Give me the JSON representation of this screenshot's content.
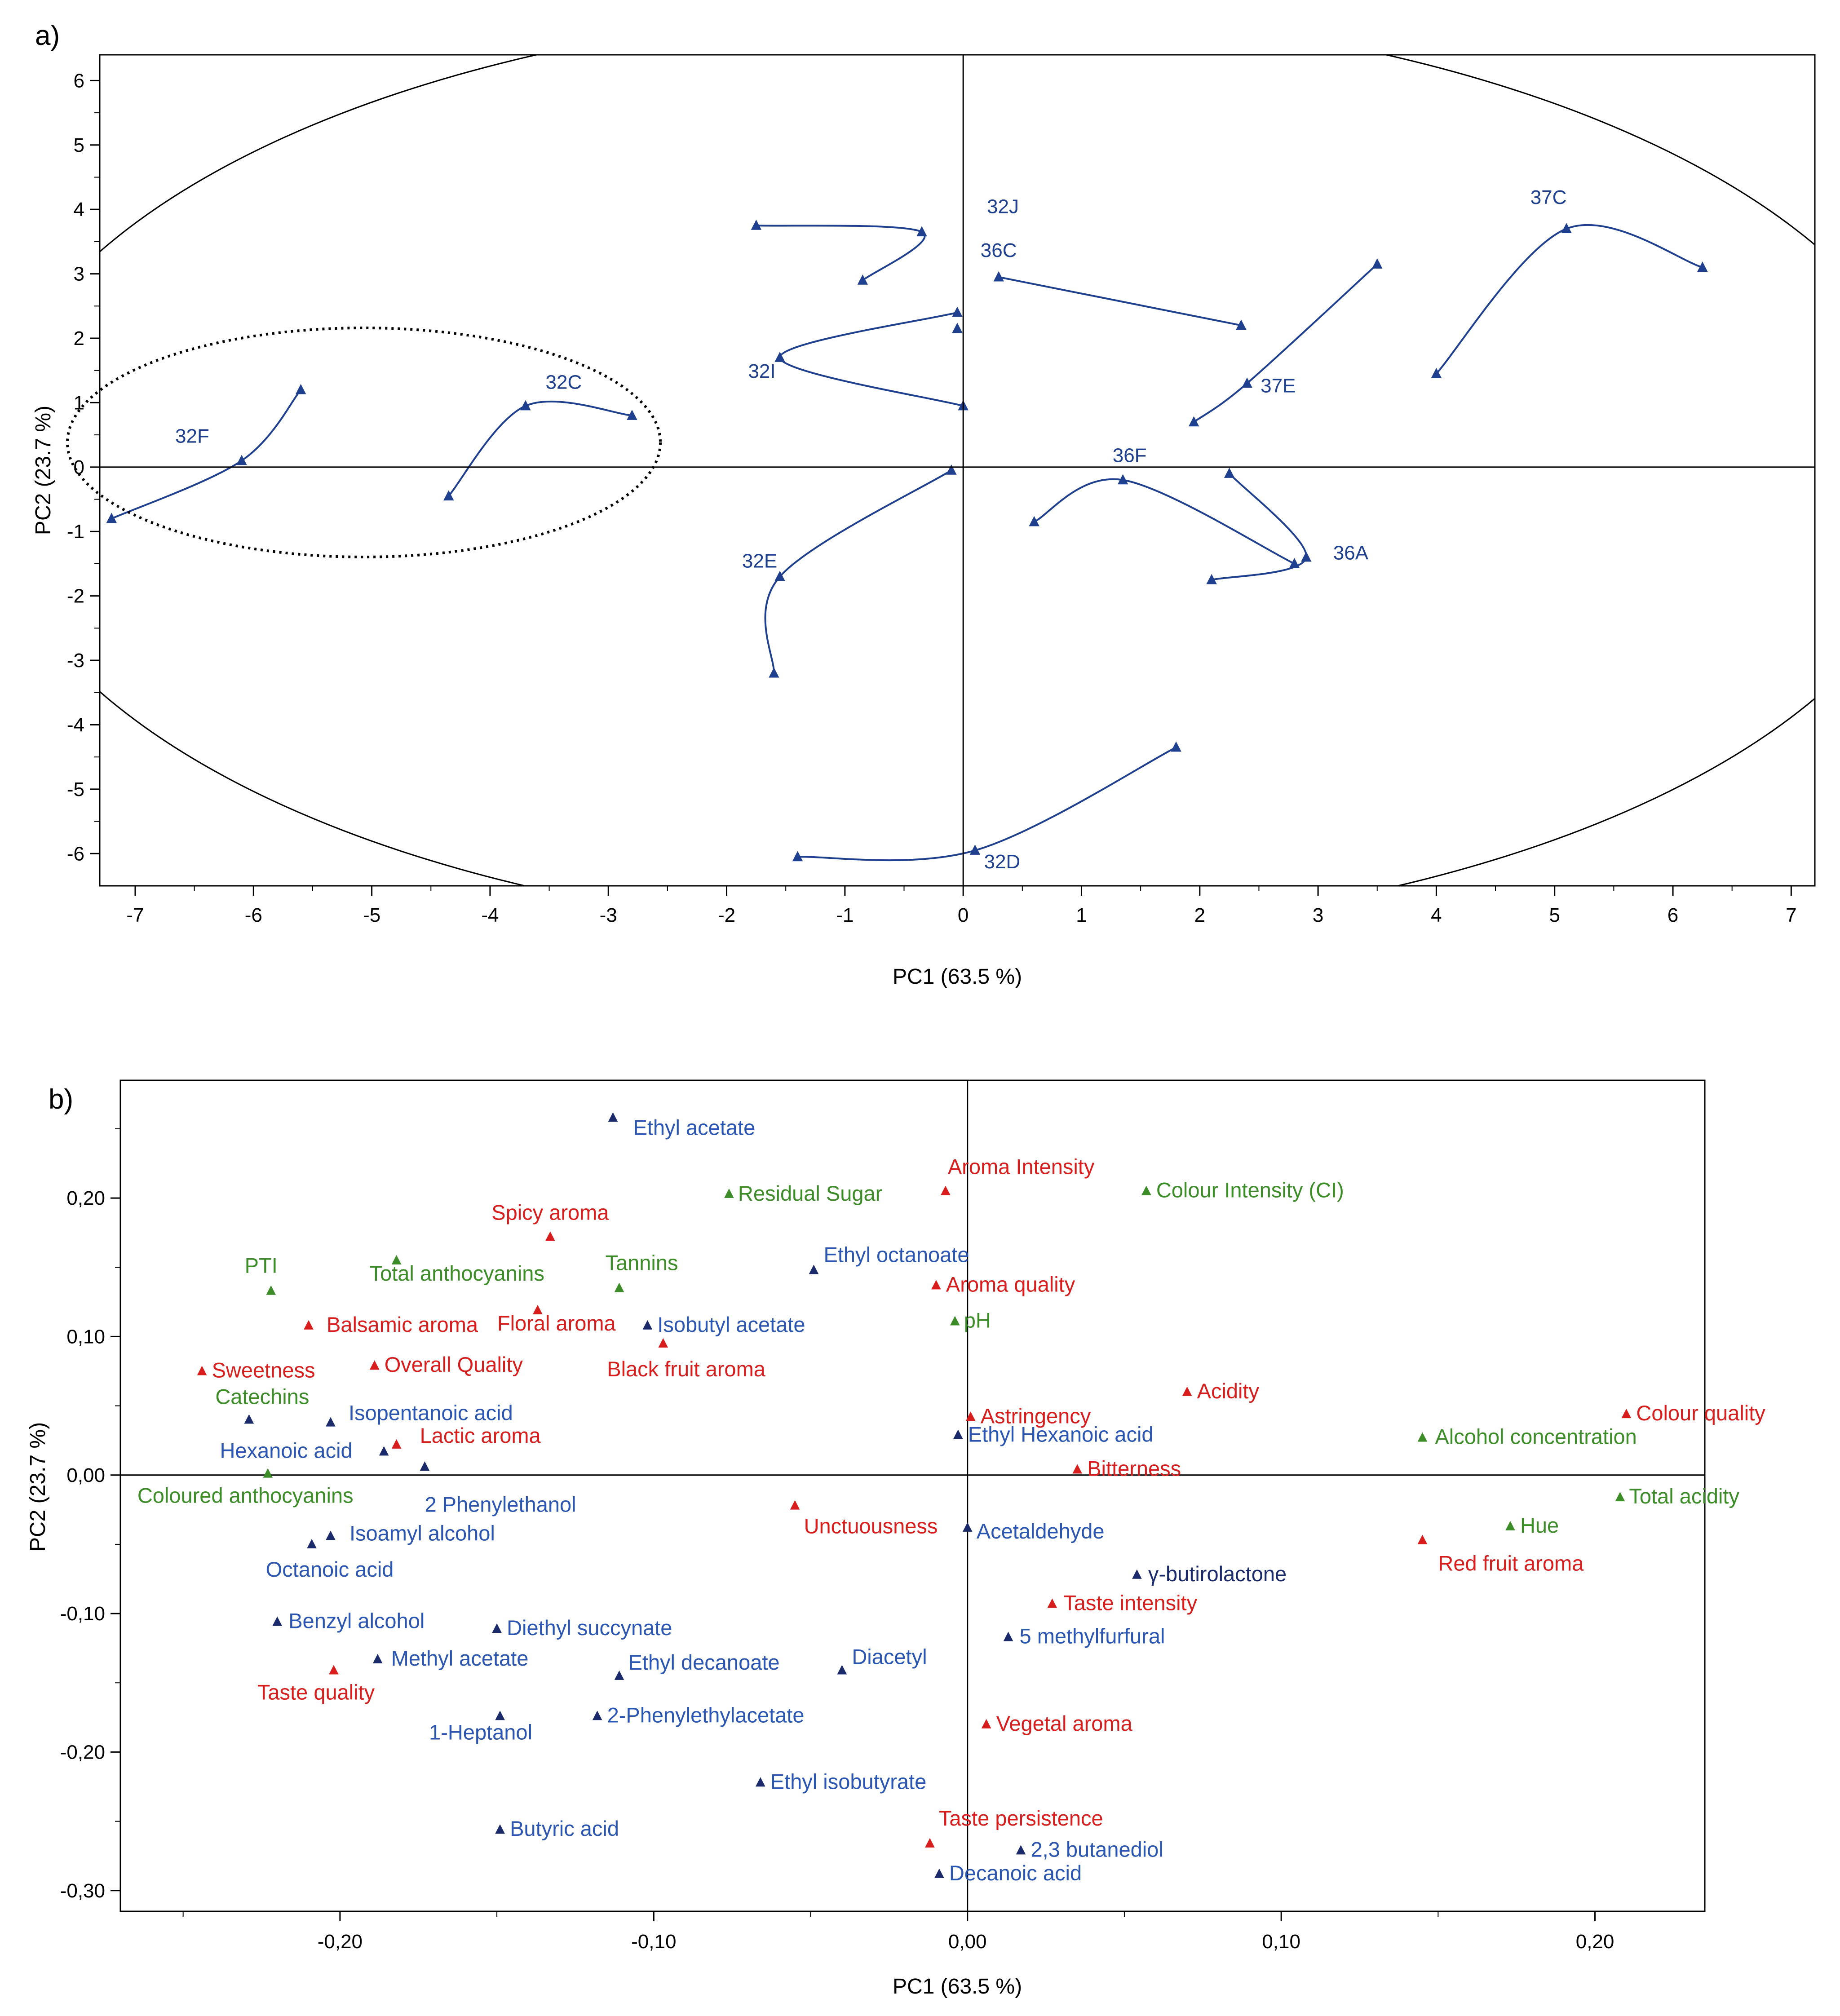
{
  "chart_data": [
    {
      "panel": "a)",
      "type": "scatter",
      "xlabel": "PC1 (63.5 %)",
      "ylabel": "PC2 (23.7 %)",
      "xlim": [
        -7.3,
        7.2
      ],
      "ylim": [
        -6.5,
        6.4
      ],
      "xticks": [
        -7,
        -6,
        -5,
        -4,
        -3,
        -2,
        -1,
        0,
        1,
        2,
        3,
        4,
        5,
        6,
        7
      ],
      "yticks": [
        6,
        5,
        4,
        3,
        2,
        1,
        0,
        -1,
        -2,
        -3,
        -4,
        -5,
        -6
      ],
      "tick_labels_x": [
        "-7",
        "-6",
        "-5",
        "-4",
        "-3",
        "-2",
        "-1",
        "0",
        "1",
        "2",
        "3",
        "4",
        "5",
        "6",
        "7"
      ],
      "tick_labels_y": [
        "6",
        "5",
        "4",
        "3",
        "2",
        "1",
        "0",
        "-1",
        "-2",
        "-3",
        "-4",
        "-5",
        "-6"
      ],
      "line_color": "#1f3f8f",
      "series": [
        {
          "name": "32J",
          "points": [
            [
              -1.75,
              3.75
            ],
            [
              -0.35,
              3.65
            ],
            [
              -0.85,
              2.9
            ]
          ]
        },
        {
          "name": "36C",
          "points": [
            [
              0.3,
              2.95
            ],
            [
              2.35,
              2.2
            ]
          ]
        },
        {
          "name": "32I",
          "points": [
            [
              -0.05,
              2.4
            ],
            [
              -1.55,
              1.7
            ],
            [
              -0.0,
              0.95
            ]
          ]
        },
        {
          "name": "37C",
          "points": [
            [
              4.0,
              1.45
            ],
            [
              5.1,
              3.7
            ],
            [
              6.25,
              3.1
            ]
          ]
        },
        {
          "name": "37E",
          "points": [
            [
              1.95,
              0.7
            ],
            [
              2.4,
              1.3
            ],
            [
              3.5,
              3.15
            ]
          ]
        },
        {
          "name": "32F",
          "points": [
            [
              -7.2,
              -0.8
            ],
            [
              -6.1,
              0.1
            ],
            [
              -5.6,
              1.2
            ]
          ]
        },
        {
          "name": "32C",
          "points": [
            [
              -4.35,
              -0.45
            ],
            [
              -3.7,
              0.95
            ],
            [
              -2.8,
              0.8
            ]
          ]
        },
        {
          "name": "36F",
          "points": [
            [
              0.6,
              -0.85
            ],
            [
              1.35,
              -0.2
            ],
            [
              2.8,
              -1.5
            ]
          ]
        },
        {
          "name": "36A",
          "points": [
            [
              2.25,
              -0.1
            ],
            [
              2.9,
              -1.4
            ],
            [
              2.1,
              -1.75
            ]
          ]
        },
        {
          "name": "32E",
          "points": [
            [
              -1.6,
              -3.2
            ],
            [
              -1.55,
              -1.7
            ],
            [
              -0.1,
              -0.05
            ]
          ]
        },
        {
          "name": "32D",
          "points": [
            [
              -1.4,
              -6.05
            ],
            [
              0.1,
              -5.95
            ],
            [
              1.8,
              -4.35
            ]
          ]
        }
      ],
      "extra_points": [
        [
          -0.05,
          2.15
        ]
      ]
    },
    {
      "panel": "b)",
      "type": "scatter",
      "xlabel": "PC1 (63.5 %)",
      "ylabel": "PC2 (23.7 %)",
      "xlim": [
        -0.27,
        0.235
      ],
      "ylim": [
        -0.315,
        0.285
      ],
      "xticks": [
        -0.2,
        -0.1,
        0.0,
        0.1,
        0.2
      ],
      "yticks": [
        0.2,
        0.1,
        0.0,
        -0.1,
        -0.2,
        -0.3
      ],
      "tick_labels_x": [
        "-0,20",
        "-0,10",
        "0,00",
        "0,10",
        "0,20"
      ],
      "tick_labels_y": [
        "0,20",
        "0,10",
        "0,00",
        "-0,10",
        "-0,20",
        "-0,30"
      ],
      "colors": {
        "blue": "#2a55b0",
        "red": "#d81d1d",
        "green": "#3c8c28",
        "navy": "#1a2a6b"
      },
      "points": [
        {
          "label": "Ethyl acetate",
          "x": -0.113,
          "y": 0.258,
          "color": "blue",
          "marker": "navy"
        },
        {
          "label": "Aroma Intensity",
          "x": -0.007,
          "y": 0.205,
          "color": "red",
          "marker": "red"
        },
        {
          "label": "Residual Sugar",
          "x": -0.076,
          "y": 0.203,
          "color": "green",
          "marker": "green"
        },
        {
          "label": "Colour Intensity (CI)",
          "x": 0.057,
          "y": 0.205,
          "color": "green",
          "marker": "green"
        },
        {
          "label": "Spicy aroma",
          "x": -0.133,
          "y": 0.172,
          "color": "red",
          "marker": "red"
        },
        {
          "label": "Ethyl octanoate",
          "x": -0.049,
          "y": 0.148,
          "color": "blue",
          "marker": "navy"
        },
        {
          "label": "PTI",
          "x": -0.222,
          "y": 0.133,
          "color": "green",
          "marker": "green"
        },
        {
          "label": "Total anthocyanins",
          "x": -0.182,
          "y": 0.155,
          "color": "green",
          "marker": "green"
        },
        {
          "label": "Tannins",
          "x": -0.111,
          "y": 0.135,
          "color": "green",
          "marker": "green"
        },
        {
          "label": "Aroma quality",
          "x": -0.01,
          "y": 0.137,
          "color": "red",
          "marker": "red"
        },
        {
          "label": "Balsamic aroma",
          "x": -0.21,
          "y": 0.108,
          "color": "red",
          "marker": "red"
        },
        {
          "label": "Floral aroma",
          "x": -0.137,
          "y": 0.119,
          "color": "red",
          "marker": "red"
        },
        {
          "label": "Isobutyl acetate",
          "x": -0.102,
          "y": 0.108,
          "color": "blue",
          "marker": "navy"
        },
        {
          "label": "pH",
          "x": -0.004,
          "y": 0.111,
          "color": "green",
          "marker": "green"
        },
        {
          "label": "Sweetness",
          "x": -0.244,
          "y": 0.075,
          "color": "red",
          "marker": "red"
        },
        {
          "label": "Overall Quality",
          "x": -0.189,
          "y": 0.079,
          "color": "red",
          "marker": "red"
        },
        {
          "label": "Black fruit aroma",
          "x": -0.097,
          "y": 0.095,
          "color": "red",
          "marker": "red"
        },
        {
          "label": "Catechins",
          "x": -0.229,
          "y": 0.04,
          "color": "green",
          "marker": "navy"
        },
        {
          "label": "Isopentanoic acid",
          "x": -0.203,
          "y": 0.038,
          "color": "blue",
          "marker": "navy"
        },
        {
          "label": "Acidity",
          "x": 0.07,
          "y": 0.06,
          "color": "red",
          "marker": "red"
        },
        {
          "label": "Astringency",
          "x": 0.001,
          "y": 0.042,
          "color": "red",
          "marker": "red"
        },
        {
          "label": "Colour quality",
          "x": 0.21,
          "y": 0.044,
          "color": "red",
          "marker": "red"
        },
        {
          "label": "Ethyl Hexanoic acid",
          "x": -0.003,
          "y": 0.029,
          "color": "blue",
          "marker": "navy"
        },
        {
          "label": "Alcohol concentration",
          "x": 0.145,
          "y": 0.027,
          "color": "green",
          "marker": "green"
        },
        {
          "label": "Hexanoic acid",
          "x": -0.186,
          "y": 0.017,
          "color": "blue",
          "marker": "navy"
        },
        {
          "label": "Lactic aroma",
          "x": -0.182,
          "y": 0.022,
          "color": "red",
          "marker": "red"
        },
        {
          "label": "2 Phenylethanol",
          "x": -0.173,
          "y": 0.006,
          "color": "blue",
          "marker": "navy"
        },
        {
          "label": "Bitterness",
          "x": 0.035,
          "y": 0.004,
          "color": "red",
          "marker": "red"
        },
        {
          "label": "Coloured anthocyanins",
          "x": -0.223,
          "y": 0.001,
          "color": "green",
          "marker": "green"
        },
        {
          "label": "Total acidity",
          "x": 0.208,
          "y": -0.016,
          "color": "green",
          "marker": "green"
        },
        {
          "label": "Unctuousness",
          "x": -0.055,
          "y": -0.022,
          "color": "red",
          "marker": "red"
        },
        {
          "label": "Acetaldehyde",
          "x": 0.0,
          "y": -0.038,
          "color": "blue",
          "marker": "navy"
        },
        {
          "label": "Hue",
          "x": 0.173,
          "y": -0.037,
          "color": "green",
          "marker": "green"
        },
        {
          "label": "Isoamyl alcohol",
          "x": -0.203,
          "y": -0.044,
          "color": "blue",
          "marker": "navy"
        },
        {
          "label": "Red fruit aroma",
          "x": 0.145,
          "y": -0.047,
          "color": "red",
          "marker": "red"
        },
        {
          "label": "Octanoic acid",
          "x": -0.209,
          "y": -0.05,
          "color": "blue",
          "marker": "navy"
        },
        {
          "label": "γ-butirolactone",
          "x": 0.054,
          "y": -0.072,
          "color": "navy",
          "marker": "navy"
        },
        {
          "label": "Taste intensity",
          "x": 0.027,
          "y": -0.093,
          "color": "red",
          "marker": "red"
        },
        {
          "label": "Benzyl alcohol",
          "x": -0.22,
          "y": -0.106,
          "color": "blue",
          "marker": "navy"
        },
        {
          "label": "Diethyl succynate",
          "x": -0.15,
          "y": -0.111,
          "color": "blue",
          "marker": "navy"
        },
        {
          "label": "5 methylfurfural",
          "x": 0.013,
          "y": -0.117,
          "color": "blue",
          "marker": "navy"
        },
        {
          "label": "Methyl acetate",
          "x": -0.188,
          "y": -0.133,
          "color": "blue",
          "marker": "navy"
        },
        {
          "label": "Ethyl decanoate",
          "x": -0.111,
          "y": -0.145,
          "color": "blue",
          "marker": "navy"
        },
        {
          "label": "Diacetyl",
          "x": -0.04,
          "y": -0.141,
          "color": "blue",
          "marker": "navy"
        },
        {
          "label": "Taste quality",
          "x": -0.202,
          "y": -0.141,
          "color": "red",
          "marker": "red"
        },
        {
          "label": "1-Heptanol",
          "x": -0.149,
          "y": -0.174,
          "color": "blue",
          "marker": "navy"
        },
        {
          "label": "2-Phenylethylacetate",
          "x": -0.118,
          "y": -0.174,
          "color": "blue",
          "marker": "navy"
        },
        {
          "label": "Vegetal aroma",
          "x": 0.006,
          "y": -0.18,
          "color": "red",
          "marker": "red"
        },
        {
          "label": "Ethyl isobutyrate",
          "x": -0.066,
          "y": -0.222,
          "color": "blue",
          "marker": "navy"
        },
        {
          "label": "Butyric acid",
          "x": -0.149,
          "y": -0.256,
          "color": "blue",
          "marker": "navy"
        },
        {
          "label": "Taste persistence",
          "x": -0.012,
          "y": -0.266,
          "color": "red",
          "marker": "red"
        },
        {
          "label": "2,3 butanediol",
          "x": 0.017,
          "y": -0.271,
          "color": "blue",
          "marker": "navy"
        },
        {
          "label": "Decanoic acid",
          "x": -0.009,
          "y": -0.288,
          "color": "blue",
          "marker": "navy"
        }
      ]
    }
  ]
}
